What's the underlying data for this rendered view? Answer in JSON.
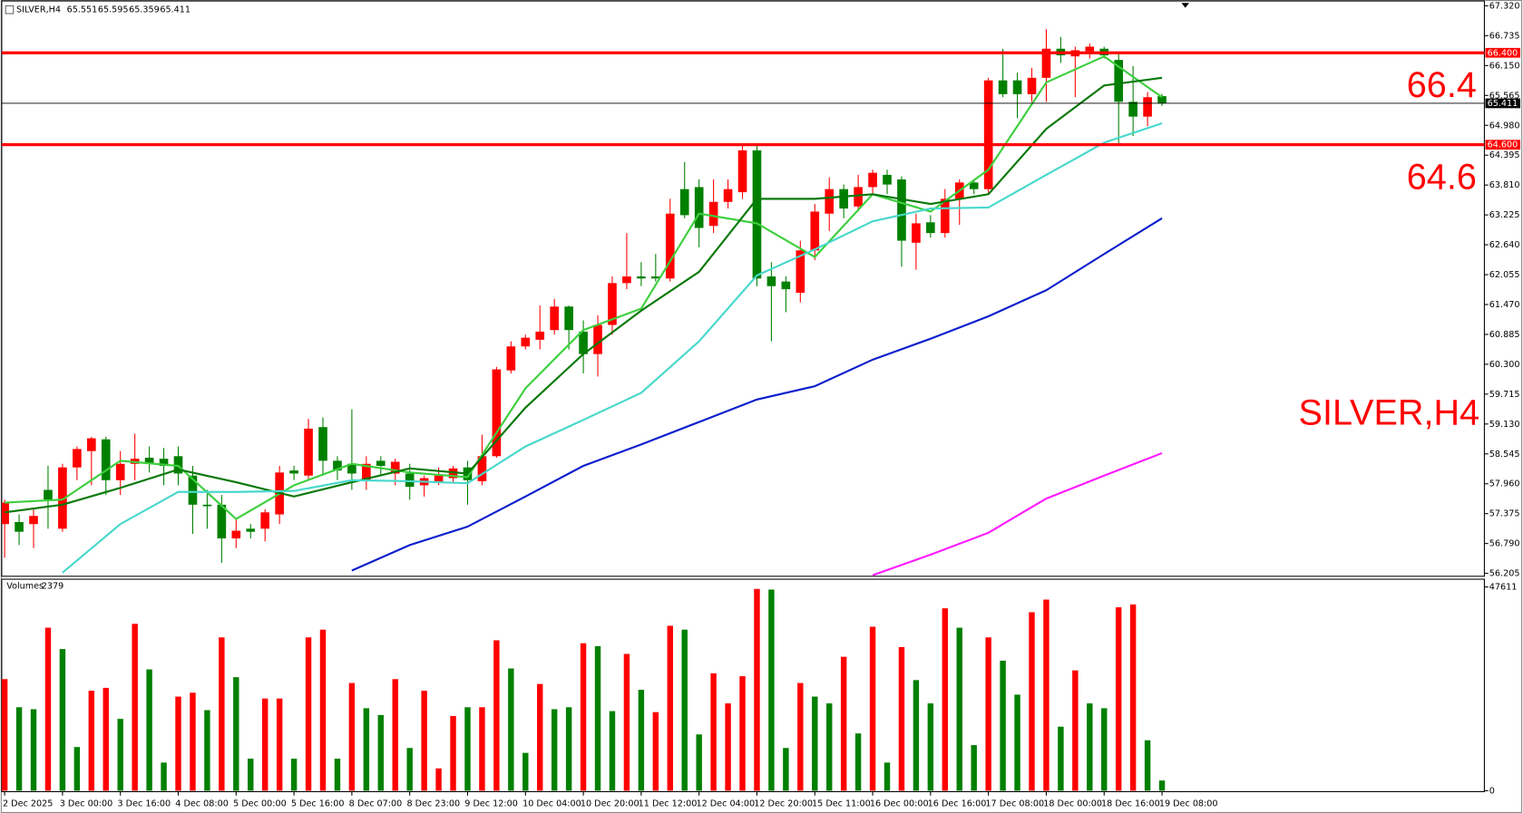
{
  "chart_data": [
    {
      "type": "candlestick",
      "title": "SILVER,H4",
      "categories": [
        "2 Dec 2025",
        null,
        null,
        null,
        "3 Dec 00:00",
        null,
        null,
        null,
        "3 Dec 16:00",
        null,
        null,
        null,
        "4 Dec 08:00",
        null,
        null,
        null,
        "5 Dec 00:00",
        null,
        null,
        null,
        "5 Dec 16:00",
        null,
        null,
        null,
        "8 Dec 07:00",
        null,
        null,
        null,
        "8 Dec 23:00",
        null,
        null,
        null,
        "9 Dec 12:00",
        null,
        null,
        null,
        "10 Dec 04:00",
        null,
        null,
        null,
        "10 Dec 20:00",
        null,
        null,
        null,
        "11 Dec 12:00",
        null,
        null,
        null,
        "12 Dec 04:00",
        null,
        null,
        null,
        "12 Dec 20:00",
        null,
        null,
        null,
        "15 Dec 11:00",
        null,
        null,
        null,
        "16 Dec 00:00",
        null,
        null,
        null,
        "16 Dec 16:00",
        null,
        null,
        null,
        "17 Dec 08:00",
        null,
        null,
        null,
        "18 Dec 00:00",
        null,
        null,
        null,
        "18 Dec 16:00",
        null,
        null,
        null,
        "19 Dec 08:00"
      ],
      "open": [
        57.17,
        57.21,
        57.17,
        57.84,
        57.08,
        58.28,
        58.6,
        58.83,
        58.03,
        58.35,
        58.47,
        58.45,
        58.5,
        58.12,
        57.55,
        57.55,
        56.89,
        57.08,
        57.08,
        57.36,
        58.22,
        58.12,
        59.07,
        58.41,
        58.35,
        58.03,
        58.41,
        58.16,
        58.16,
        57.93,
        57.99,
        58.07,
        58.28,
        58.01,
        58.5,
        60.18,
        60.65,
        60.78,
        60.97,
        61.43,
        60.94,
        60.5,
        61.07,
        61.89,
        62.02,
        62.02,
        61.98,
        63.73,
        63.77,
        63.01,
        63.48,
        63.67,
        64.49,
        62.02,
        61.92,
        61.7,
        62.53,
        63.25,
        63.73,
        63.39,
        63.77,
        64.01,
        63.92,
        62.68,
        63.08,
        62.87,
        63.54,
        63.86,
        63.73,
        65.86,
        65.86,
        65.59,
        65.91,
        66.48,
        66.33,
        66.43,
        66.48,
        66.26,
        65.44,
        65.15,
        65.551
      ],
      "high": [
        57.65,
        57.36,
        57.46,
        58.31,
        58.35,
        58.69,
        58.88,
        58.88,
        58.6,
        58.94,
        58.69,
        58.66,
        58.69,
        58.31,
        57.84,
        57.74,
        57.27,
        57.17,
        57.46,
        58.31,
        58.31,
        59.23,
        59.26,
        58.5,
        59.42,
        58.5,
        58.5,
        58.45,
        58.35,
        58.12,
        58.28,
        58.31,
        58.41,
        58.92,
        60.25,
        60.75,
        60.88,
        61.45,
        61.58,
        61.45,
        61.16,
        61.26,
        62.02,
        62.87,
        62.3,
        62.46,
        63.54,
        64.26,
        63.92,
        63.92,
        63.92,
        64.58,
        64.58,
        62.3,
        62.02,
        62.72,
        63.44,
        63.96,
        63.82,
        64.01,
        64.11,
        64.11,
        63.98,
        63.25,
        63.22,
        63.73,
        63.92,
        63.92,
        65.91,
        66.48,
        66.01,
        66.1,
        66.86,
        66.71,
        66.52,
        66.58,
        66.52,
        66.39,
        66.14,
        65.63,
        65.595
      ],
      "low": [
        56.51,
        56.76,
        56.7,
        57.08,
        57.02,
        58.03,
        57.93,
        57.74,
        57.74,
        58.03,
        58.18,
        57.93,
        57.93,
        56.98,
        57.08,
        56.41,
        56.7,
        56.89,
        56.83,
        57.17,
        58.03,
        58.03,
        58.12,
        58.03,
        57.84,
        57.84,
        58.12,
        57.93,
        57.65,
        57.71,
        57.93,
        57.97,
        57.55,
        57.93,
        58.47,
        60.12,
        60.59,
        60.59,
        60.88,
        60.59,
        60.12,
        60.06,
        60.88,
        61.77,
        61.83,
        61.92,
        61.92,
        63.16,
        62.59,
        62.87,
        63.35,
        63.54,
        61.83,
        60.75,
        61.32,
        61.51,
        62.34,
        62.91,
        63.16,
        63.29,
        63.63,
        63.63,
        62.21,
        62.15,
        62.78,
        62.78,
        63.03,
        63.63,
        63.63,
        65.53,
        65.12,
        65.44,
        65.44,
        66.2,
        65.53,
        66.29,
        66.29,
        64.62,
        64.77,
        64.96,
        65.359
      ],
      "close": [
        57.59,
        57.02,
        57.33,
        57.65,
        58.28,
        58.64,
        58.85,
        58.03,
        58.35,
        58.45,
        58.35,
        58.31,
        58.16,
        57.55,
        57.52,
        56.89,
        57.04,
        57.02,
        57.4,
        58.18,
        58.16,
        59.04,
        58.41,
        58.22,
        58.16,
        58.35,
        58.31,
        58.39,
        57.9,
        58.07,
        58.12,
        58.26,
        58.03,
        58.5,
        60.2,
        60.65,
        60.82,
        60.94,
        61.43,
        60.97,
        60.5,
        61.07,
        61.89,
        62.02,
        61.98,
        61.98,
        63.25,
        63.22,
        62.97,
        63.48,
        63.73,
        64.49,
        61.98,
        61.83,
        61.77,
        62.53,
        63.29,
        63.73,
        63.35,
        63.77,
        64.05,
        63.82,
        62.72,
        63.06,
        62.87,
        63.54,
        63.86,
        63.73,
        65.86,
        65.59,
        65.59,
        65.91,
        66.48,
        66.35,
        66.45,
        66.52,
        66.35,
        65.44,
        65.15,
        65.53,
        65.411
      ],
      "up_color": "#ff0000",
      "down_color": "#008000",
      "last_price_color": "#000000",
      "overlays": [
        {
          "color": "#3ccf3c",
          "x": [
            0,
            4,
            8,
            12,
            16,
            20,
            24,
            28,
            32,
            36,
            40,
            44,
            48,
            52,
            56,
            60,
            64,
            68,
            72,
            76,
            80
          ],
          "values": [
            57.59,
            57.65,
            58.41,
            58.31,
            57.27,
            57.93,
            58.35,
            58.18,
            58.09,
            59.83,
            60.97,
            61.39,
            63.25,
            63.06,
            62.4,
            63.63,
            63.29,
            64.11,
            65.82,
            66.33,
            65.53
          ]
        },
        {
          "color": "#087808",
          "x": [
            0,
            4,
            8,
            12,
            16,
            20,
            24,
            28,
            32,
            36,
            40,
            44,
            48,
            52,
            56,
            60,
            64,
            68,
            72,
            76,
            80
          ],
          "values": [
            57.4,
            57.55,
            57.88,
            58.24,
            57.99,
            57.71,
            57.99,
            58.26,
            58.16,
            59.45,
            60.5,
            61.35,
            62.11,
            63.54,
            63.54,
            63.63,
            63.44,
            63.63,
            64.91,
            65.76,
            65.91
          ]
        },
        {
          "color": "#48d8cc",
          "x": [
            4,
            8,
            12,
            16,
            20,
            24,
            28,
            32,
            36,
            40,
            44,
            48,
            52,
            56,
            60,
            64,
            68,
            72,
            76,
            80
          ],
          "values": [
            56.22,
            57.17,
            57.8,
            57.8,
            57.82,
            58.03,
            58.01,
            57.97,
            58.69,
            59.21,
            59.74,
            60.75,
            62.04,
            62.55,
            63.1,
            63.35,
            63.37,
            64.01,
            64.64,
            65.02
          ]
        },
        {
          "color": "#0a1ecc",
          "x": [
            24,
            28,
            32,
            36,
            40,
            44,
            48,
            52,
            56,
            60,
            64,
            68,
            72,
            76,
            80
          ],
          "values": [
            56.26,
            56.76,
            57.12,
            57.71,
            58.31,
            58.73,
            59.17,
            59.61,
            59.87,
            60.39,
            60.8,
            61.24,
            61.75,
            62.46,
            63.16
          ]
        },
        {
          "color": "#ff1aff",
          "x": [
            60,
            64,
            68,
            72,
            76,
            80
          ],
          "values": [
            56.17,
            56.57,
            57.0,
            57.67,
            58.12,
            58.56
          ]
        }
      ],
      "hlines": [
        {
          "value": 66.4,
          "label": "66.400",
          "color": "#ff0000"
        },
        {
          "value": 64.6,
          "label": "64.600",
          "color": "#ff0000"
        }
      ],
      "ylim": [
        56.148,
        67.396
      ],
      "yticks": [
        {
          "value": 67.32,
          "label": "67.320"
        },
        {
          "value": 66.735,
          "label": "66.735"
        },
        {
          "value": 66.15,
          "label": "66.150"
        },
        {
          "value": 65.565,
          "label": "65.565"
        },
        {
          "value": 64.98,
          "label": "64.980"
        },
        {
          "value": 64.395,
          "label": "64.395"
        },
        {
          "value": 63.81,
          "label": "63.810"
        },
        {
          "value": 63.225,
          "label": "63.225"
        },
        {
          "value": 62.64,
          "label": "62.640"
        },
        {
          "value": 62.055,
          "label": "62.055"
        },
        {
          "value": 61.47,
          "label": "61.470"
        },
        {
          "value": 60.885,
          "label": "60.885"
        },
        {
          "value": 60.3,
          "label": "60.300"
        },
        {
          "value": 59.715,
          "label": "59.715"
        },
        {
          "value": 59.13,
          "label": "59.130"
        },
        {
          "value": 58.545,
          "label": "58.545"
        },
        {
          "value": 57.96,
          "label": "57.960"
        },
        {
          "value": 57.375,
          "label": "57.375"
        },
        {
          "value": 56.79,
          "label": "56.790"
        },
        {
          "value": 56.205,
          "label": "56.205"
        }
      ]
    },
    {
      "type": "bar",
      "title": "Volumes",
      "values": [
        26070,
        19500,
        19040,
        38090,
        33100,
        10200,
        23350,
        24030,
        16780,
        38990,
        28340,
        6570,
        21990,
        22900,
        18820,
        35820,
        26520,
        7480,
        21540,
        21540,
        7480,
        35820,
        37630,
        7480,
        25160,
        19270,
        17680,
        26070,
        9980,
        23350,
        5210,
        17460,
        19500,
        19500,
        35140,
        28560,
        8840,
        24940,
        19040,
        19500,
        34460,
        33780,
        18590,
        31960,
        23580,
        18360,
        38540,
        37630,
        13150,
        27430,
        20400,
        26750,
        47150,
        47000,
        9980,
        25160,
        21990,
        20400,
        31290,
        13380,
        38310,
        6570,
        33550,
        25840,
        20400,
        42620,
        38090,
        10650,
        35820,
        30380,
        22440,
        41710,
        44660,
        14960,
        28110,
        20400,
        19270,
        42850,
        43530,
        11790,
        2379
      ],
      "colors": [
        "#ff0000",
        "#008000",
        "#008000",
        "#ff0000",
        "#008000",
        "#008000",
        "#ff0000",
        "#ff0000",
        "#008000",
        "#ff0000",
        "#008000",
        "#008000",
        "#ff0000",
        "#ff0000",
        "#008000",
        "#ff0000",
        "#008000",
        "#008000",
        "#ff0000",
        "#ff0000",
        "#008000",
        "#ff0000",
        "#ff0000",
        "#008000",
        "#ff0000",
        "#008000",
        "#008000",
        "#ff0000",
        "#008000",
        "#ff0000",
        "#ff0000",
        "#ff0000",
        "#008000",
        "#ff0000",
        "#ff0000",
        "#008000",
        "#008000",
        "#ff0000",
        "#008000",
        "#008000",
        "#ff0000",
        "#008000",
        "#008000",
        "#ff0000",
        "#008000",
        "#ff0000",
        "#ff0000",
        "#008000",
        "#008000",
        "#ff0000",
        "#ff0000",
        "#ff0000",
        "#ff0000",
        "#008000",
        "#008000",
        "#ff0000",
        "#008000",
        "#008000",
        "#ff0000",
        "#008000",
        "#ff0000",
        "#008000",
        "#ff0000",
        "#008000",
        "#008000",
        "#ff0000",
        "#008000",
        "#008000",
        "#ff0000",
        "#008000",
        "#008000",
        "#ff0000",
        "#ff0000",
        "#008000",
        "#ff0000",
        "#008000",
        "#008000",
        "#ff0000",
        "#ff0000",
        "#008000",
        "#008000"
      ],
      "ylim": [
        0,
        47611
      ],
      "yticks": [
        0,
        47611
      ]
    }
  ]
}
